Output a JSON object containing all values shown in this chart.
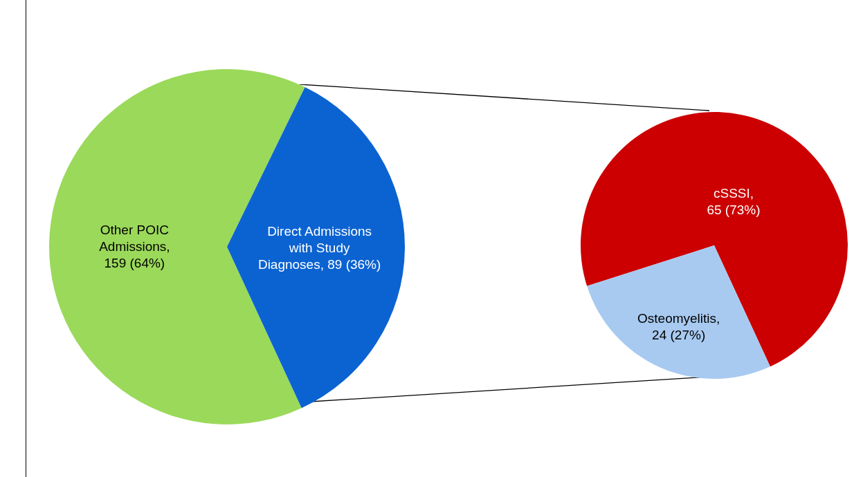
{
  "chart_data": [
    {
      "type": "pie",
      "categories": [
        "Other POIC Admissions",
        "Direct Admissions with Study Diagnoses"
      ],
      "values": [
        159,
        89
      ],
      "colors": [
        "#9bd95a",
        "#0b63d1"
      ],
      "value_labels": [
        ", 159 (64%)",
        ", 89 (36%)"
      ]
    },
    {
      "type": "pie",
      "categories": [
        "cSSSI",
        "Osteomyelitis"
      ],
      "values": [
        65,
        24
      ],
      "colors": [
        "#cc0000",
        "#a8caf0"
      ],
      "value_labels": [
        ", 65 (73%)",
        ", 24 (27%)"
      ]
    }
  ]
}
